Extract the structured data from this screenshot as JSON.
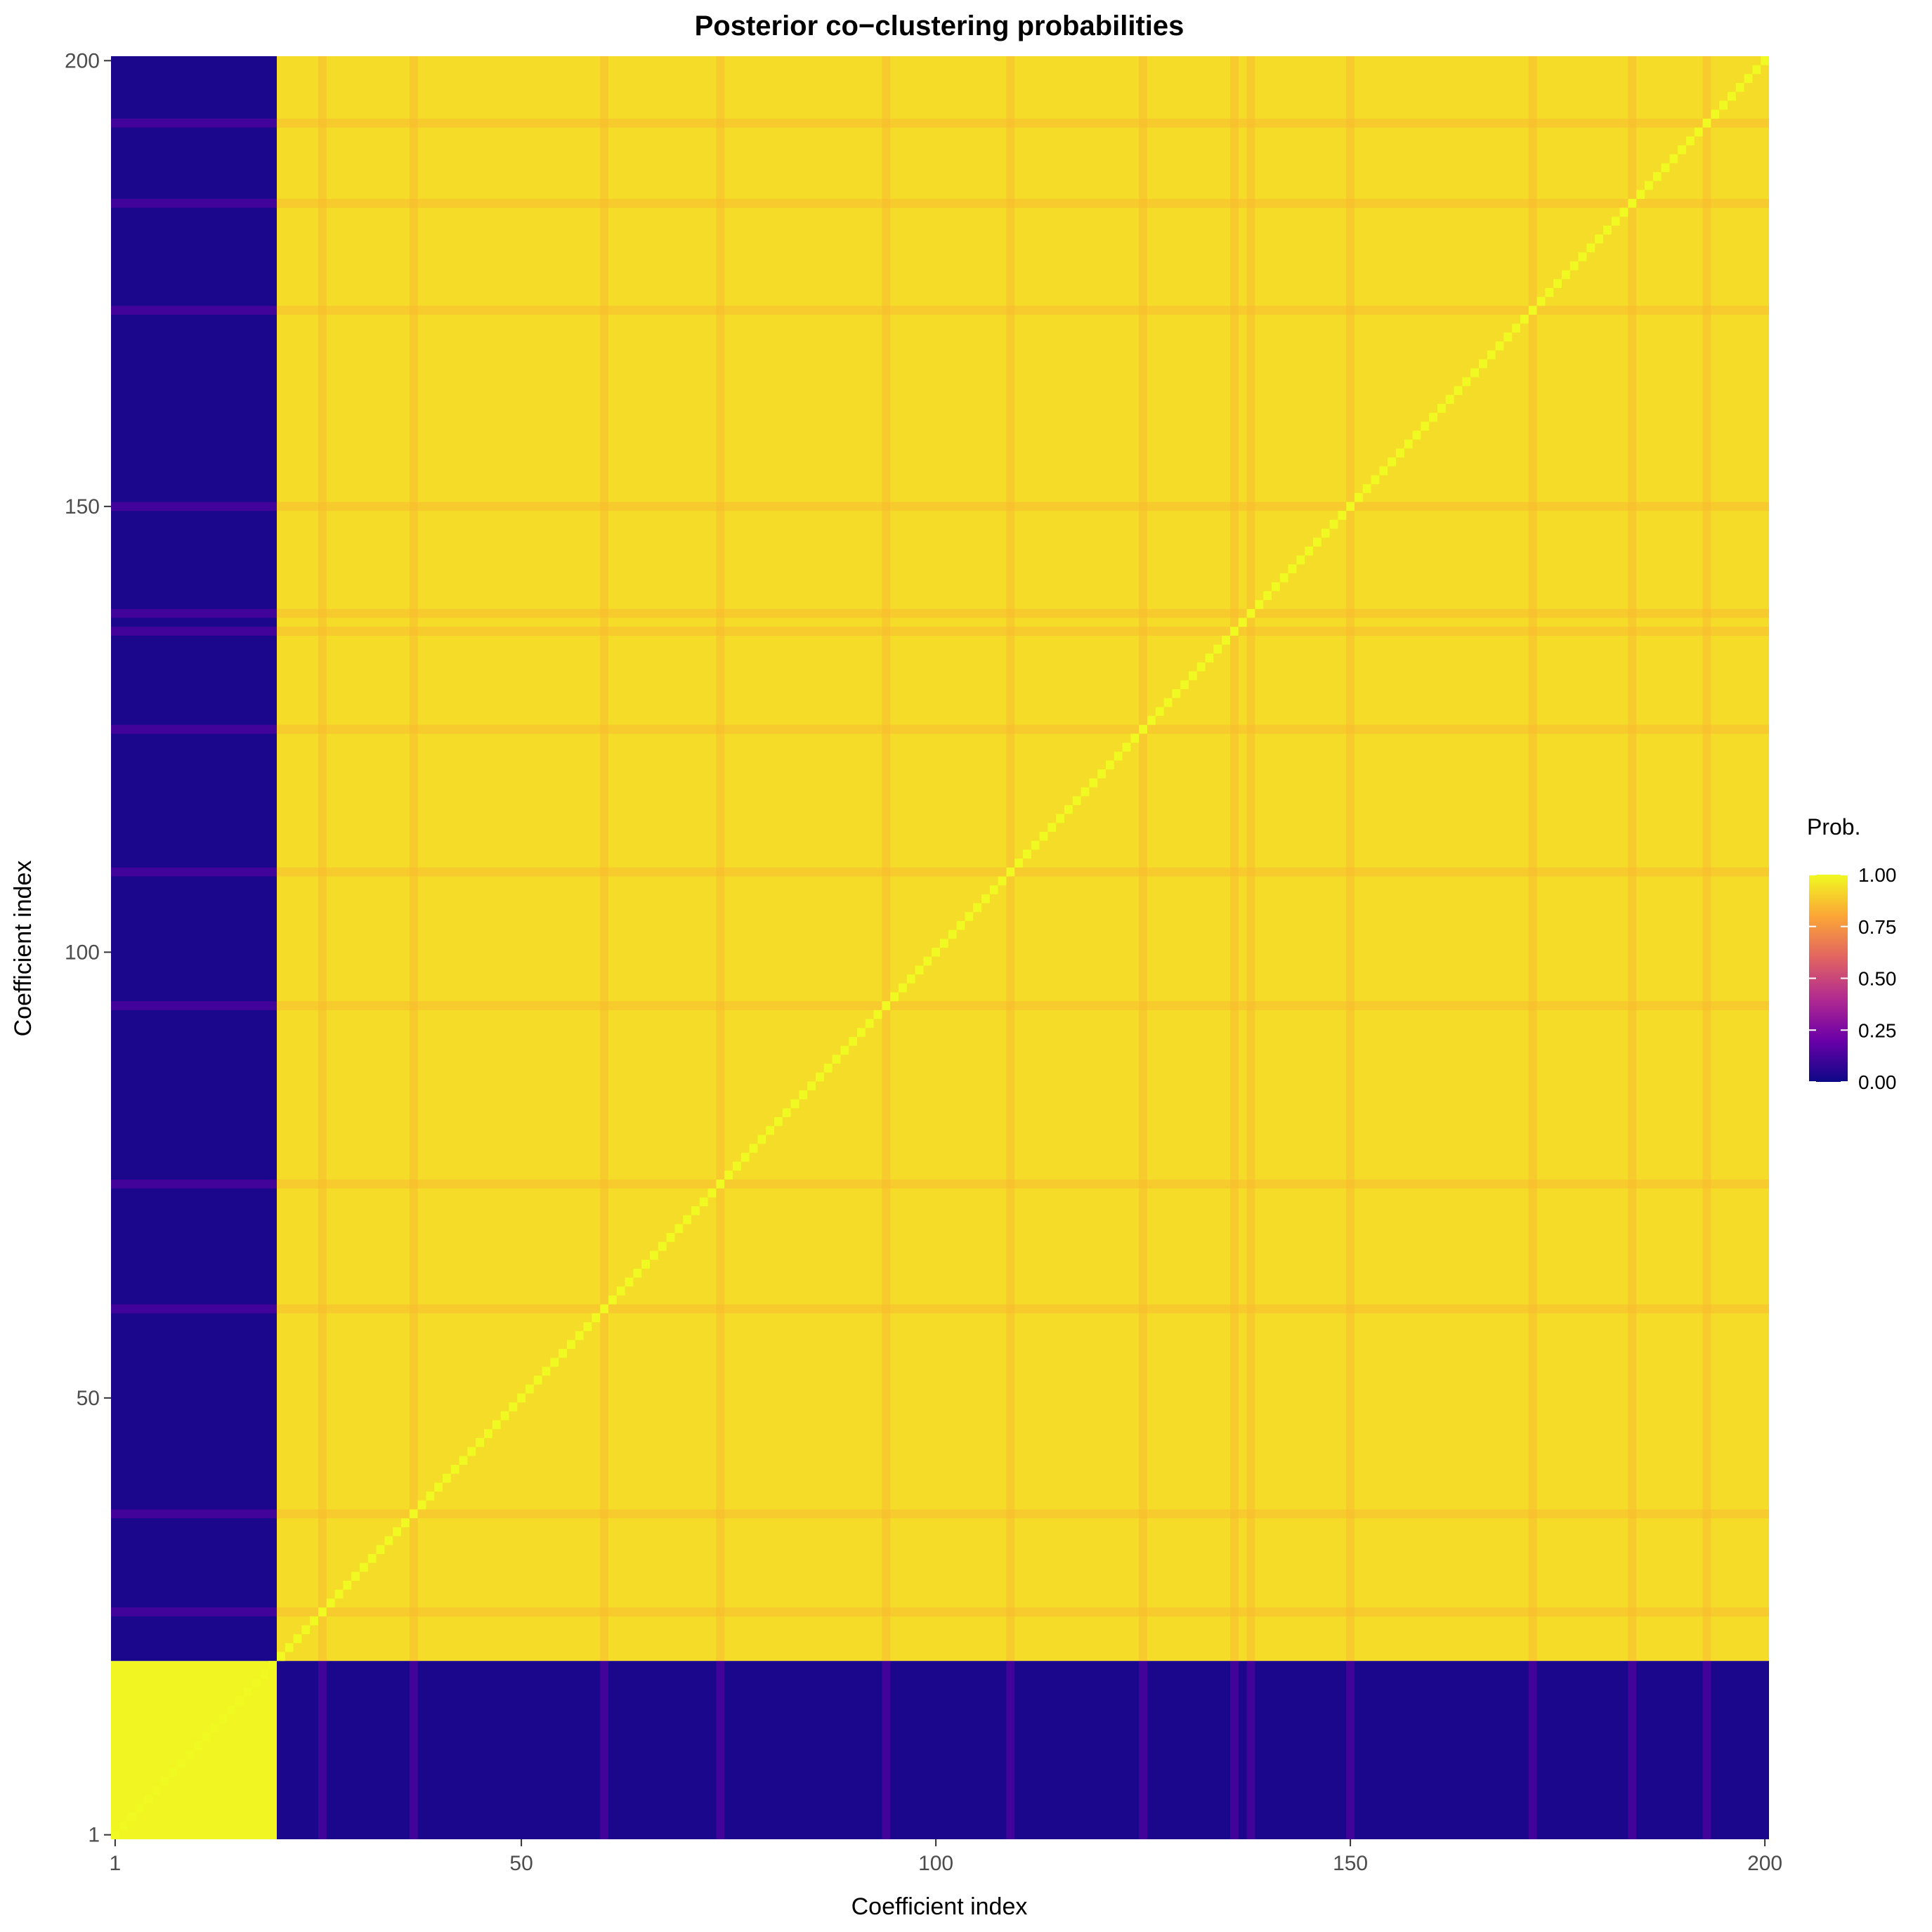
{
  "chart_data": {
    "type": "heatmap",
    "title": "Posterior co−clustering probabilities",
    "xlabel": "Coefficient index",
    "ylabel": "Coefficient index",
    "n": 200,
    "x_ticks": [
      1,
      50,
      100,
      150,
      200
    ],
    "y_ticks": [
      1,
      50,
      100,
      150,
      200
    ],
    "xlim": [
      1,
      200
    ],
    "ylim": [
      1,
      200
    ],
    "clusters": [
      {
        "from": 1,
        "to": 20
      },
      {
        "from": 21,
        "to": 200
      }
    ],
    "within_cluster_probability": {
      "cluster_1": 0.99,
      "cluster_2": 0.93
    },
    "between_cluster_probability": 0.03,
    "diagonal_probability": 1.0,
    "weaker_rows_cluster_2": [
      26,
      37,
      60,
      74,
      94,
      109,
      125,
      136,
      138,
      150,
      172,
      184,
      193
    ],
    "weaker_row_probability": 0.85,
    "colorscale": "plasma",
    "colorscale_stops": [
      "#0d0887",
      "#6a00a8",
      "#b12a90",
      "#e16462",
      "#fca636",
      "#f0f921"
    ],
    "legend": {
      "title": "Prob.",
      "labels": [
        "1.00",
        "0.75",
        "0.50",
        "0.25",
        "0.00"
      ],
      "values": [
        1.0,
        0.75,
        0.5,
        0.25,
        0.0
      ],
      "placement": "right"
    },
    "grid": false
  }
}
